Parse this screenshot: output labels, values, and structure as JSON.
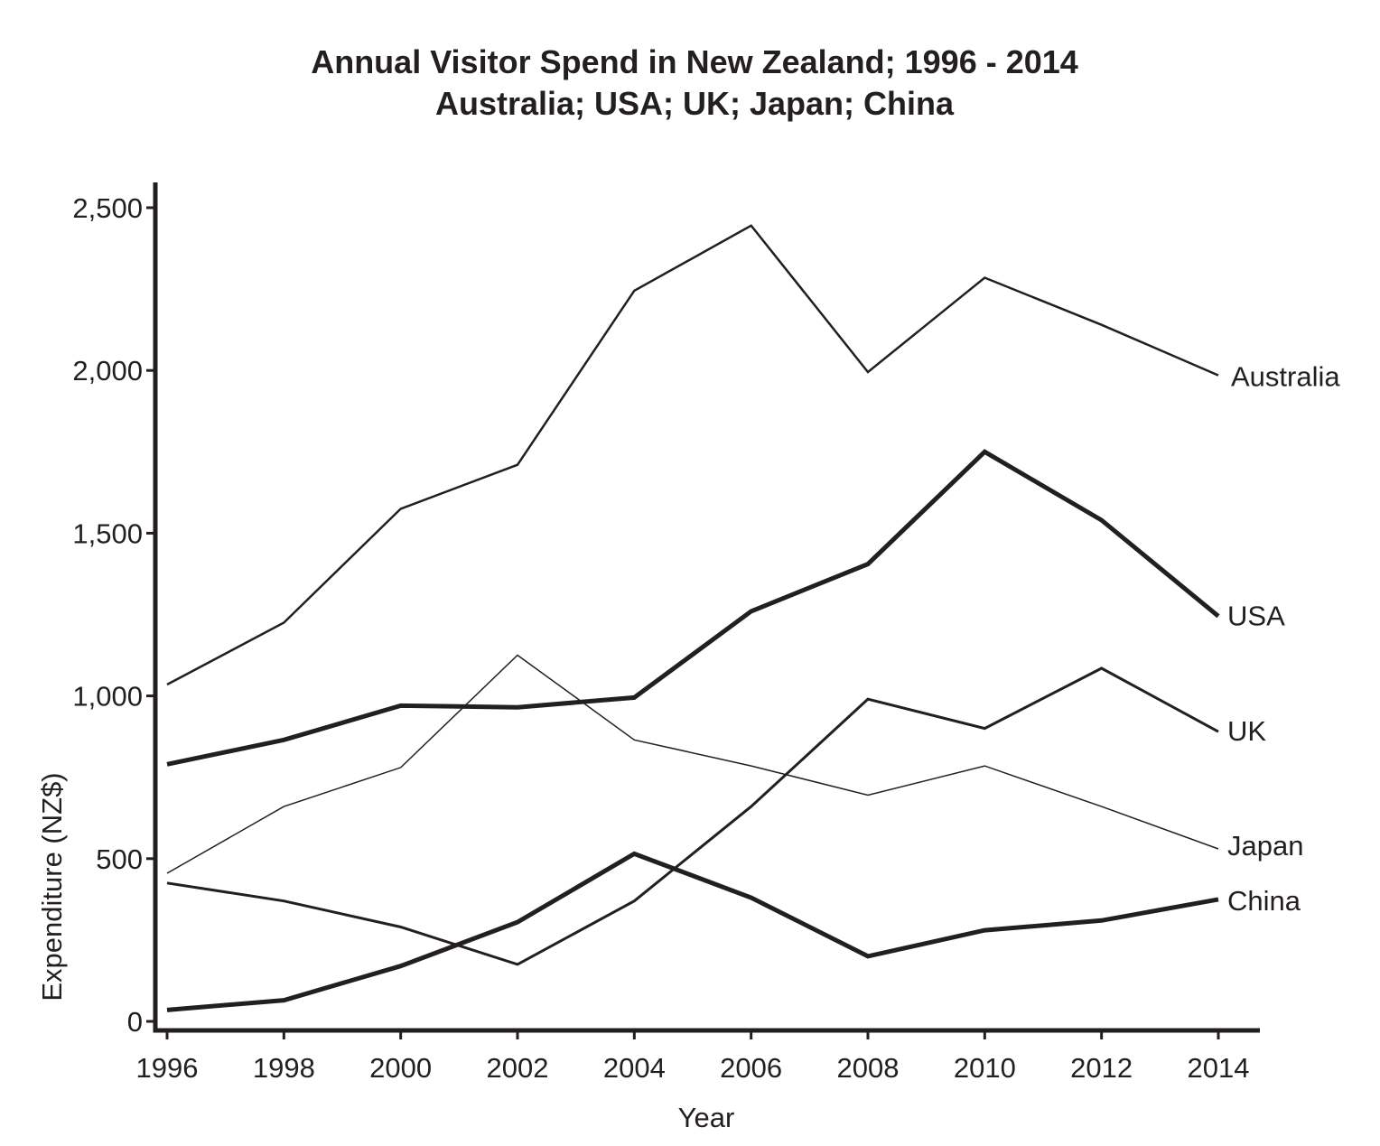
{
  "chart_data": {
    "type": "line",
    "title": "Annual Visitor Spend in New Zealand; 1996 - 2014",
    "subtitle": "Australia; USA; UK; Japan; China",
    "xlabel": "Year",
    "ylabel": "Expenditure (NZ$)",
    "x": [
      1996,
      1998,
      2000,
      2002,
      2004,
      2006,
      2008,
      2010,
      2012,
      2014
    ],
    "x_tick_labels": [
      "1996",
      "1998",
      "2000",
      "2002",
      "2004",
      "2006",
      "2008",
      "2010",
      "2012",
      "2014"
    ],
    "y_ticks": [
      0,
      500,
      1000,
      1500,
      2000,
      2500
    ],
    "y_tick_labels": [
      "0",
      "500",
      "1,000",
      "1,500",
      "2,000",
      "2,500"
    ],
    "ylim": [
      0,
      2500
    ],
    "grid": false,
    "legend": "inline labels at right end of each line",
    "series": [
      {
        "name": "Australia",
        "values": [
          1035,
          1225,
          1575,
          1710,
          2245,
          2445,
          1995,
          2285,
          2140,
          1985
        ],
        "style": "thin"
      },
      {
        "name": "USA",
        "values": [
          790,
          865,
          970,
          965,
          995,
          1260,
          1405,
          1750,
          1540,
          1245
        ],
        "style": "thick"
      },
      {
        "name": "UK",
        "values": [
          425,
          370,
          290,
          175,
          370,
          660,
          990,
          900,
          1085,
          890
        ],
        "style": "medium"
      },
      {
        "name": "Japan",
        "values": [
          455,
          660,
          780,
          1125,
          865,
          785,
          695,
          785,
          660,
          530
        ],
        "style": "hairline"
      },
      {
        "name": "China",
        "values": [
          35,
          65,
          170,
          305,
          515,
          380,
          200,
          280,
          310,
          375
        ],
        "style": "thick"
      }
    ]
  }
}
